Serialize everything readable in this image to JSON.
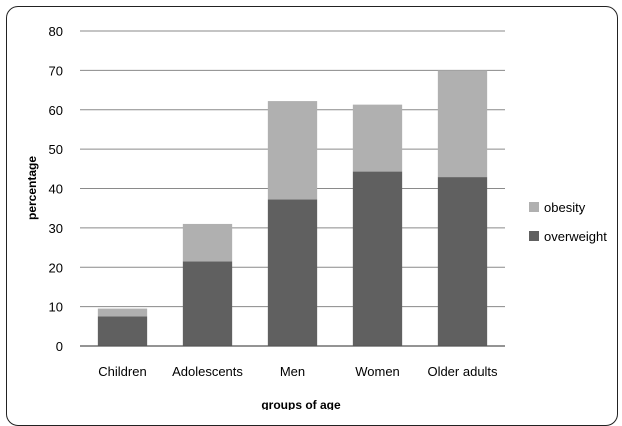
{
  "chart_data": {
    "type": "bar",
    "stacked": true,
    "categories": [
      "Children",
      "Adolescents",
      "Men",
      "Women",
      "Older adults"
    ],
    "series": [
      {
        "name": "overweight",
        "values": [
          7.5,
          21.5,
          37.2,
          44.3,
          42.9
        ],
        "color": "#606060"
      },
      {
        "name": "obesity",
        "values": [
          2.0,
          9.5,
          25.0,
          17.0,
          27.1
        ],
        "color": "#b0b0b0"
      }
    ],
    "xlabel": "groups of age",
    "ylabel": "percentage",
    "ylim": [
      0,
      80
    ],
    "yticks": [
      "0",
      "10",
      "20",
      "30",
      "40",
      "50",
      "60",
      "70",
      "80"
    ],
    "grid": true,
    "legend": {
      "position": "right",
      "entries": [
        "obesity",
        "overweight"
      ]
    }
  }
}
